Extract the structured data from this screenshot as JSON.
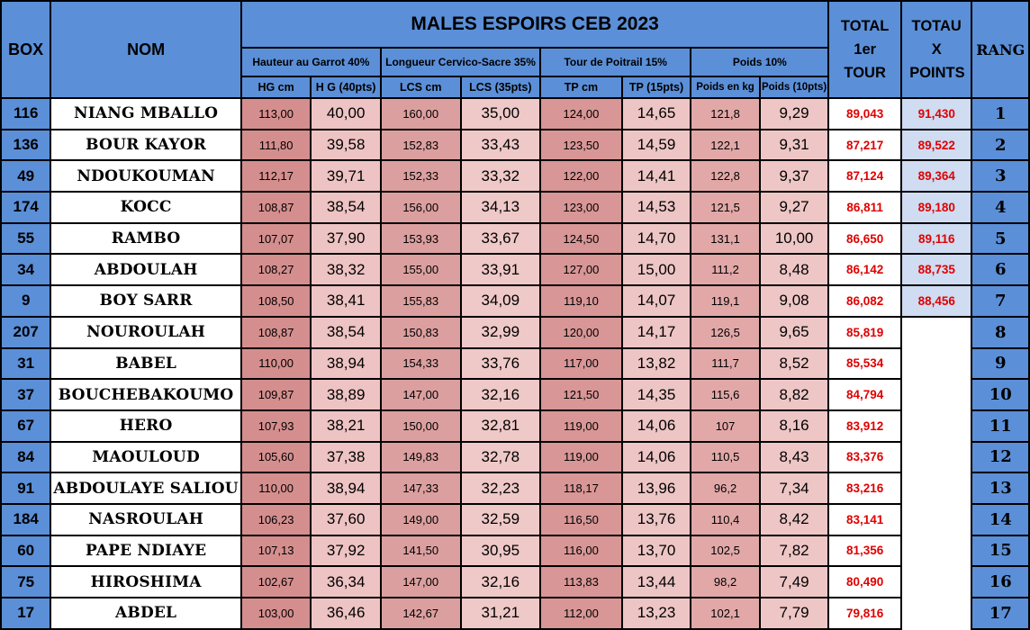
{
  "title": "MALES ESPOIRS CEB 2023",
  "headers": {
    "box": "BOX",
    "nom": "NOM",
    "groups": [
      "Hauteur au Garrot 40%",
      "Longueur Cervico-Sacre 35%",
      "Tour de Poitrail 15%",
      "Poids 10%"
    ],
    "subs": [
      "HG cm",
      "H G (40pts)",
      "LCS cm",
      "LCS (35pts)",
      "TP cm",
      "TP (15pts)",
      "Poids en kg",
      "Poids (10pts)"
    ],
    "total": "TOTAL 1er TOUR",
    "totx": "TOTAU X POINTS",
    "rang": "RANG"
  },
  "rows": [
    {
      "box": "116",
      "nom": "NIANG MBALLO",
      "hg": "113,00",
      "hgp": "40,00",
      "lcs": "160,00",
      "lcsp": "35,00",
      "tp": "124,00",
      "tpp": "14,65",
      "pd": "121,8",
      "pdp": "9,29",
      "total": "89,043",
      "totx": "91,430",
      "rang": "1"
    },
    {
      "box": "136",
      "nom": "BOUR KAYOR",
      "hg": "111,80",
      "hgp": "39,58",
      "lcs": "152,83",
      "lcsp": "33,43",
      "tp": "123,50",
      "tpp": "14,59",
      "pd": "122,1",
      "pdp": "9,31",
      "total": "87,217",
      "totx": "89,522",
      "rang": "2"
    },
    {
      "box": "49",
      "nom": "NDOUKOUMAN",
      "hg": "112,17",
      "hgp": "39,71",
      "lcs": "152,33",
      "lcsp": "33,32",
      "tp": "122,00",
      "tpp": "14,41",
      "pd": "122,8",
      "pdp": "9,37",
      "total": "87,124",
      "totx": "89,364",
      "rang": "3"
    },
    {
      "box": "174",
      "nom": "KOCC",
      "hg": "108,87",
      "hgp": "38,54",
      "lcs": "156,00",
      "lcsp": "34,13",
      "tp": "123,00",
      "tpp": "14,53",
      "pd": "121,5",
      "pdp": "9,27",
      "total": "86,811",
      "totx": "89,180",
      "rang": "4"
    },
    {
      "box": "55",
      "nom": "RAMBO",
      "hg": "107,07",
      "hgp": "37,90",
      "lcs": "153,93",
      "lcsp": "33,67",
      "tp": "124,50",
      "tpp": "14,70",
      "pd": "131,1",
      "pdp": "10,00",
      "total": "86,650",
      "totx": "89,116",
      "rang": "5"
    },
    {
      "box": "34",
      "nom": "ABDOULAH",
      "hg": "108,27",
      "hgp": "38,32",
      "lcs": "155,00",
      "lcsp": "33,91",
      "tp": "127,00",
      "tpp": "15,00",
      "pd": "111,2",
      "pdp": "8,48",
      "total": "86,142",
      "totx": "88,735",
      "rang": "6"
    },
    {
      "box": "9",
      "nom": "BOY SARR",
      "hg": "108,50",
      "hgp": "38,41",
      "lcs": "155,83",
      "lcsp": "34,09",
      "tp": "119,10",
      "tpp": "14,07",
      "pd": "119,1",
      "pdp": "9,08",
      "total": "86,082",
      "totx": "88,456",
      "rang": "7"
    },
    {
      "box": "207",
      "nom": "NOUROULAH",
      "hg": "108,87",
      "hgp": "38,54",
      "lcs": "150,83",
      "lcsp": "32,99",
      "tp": "120,00",
      "tpp": "14,17",
      "pd": "126,5",
      "pdp": "9,65",
      "total": "85,819",
      "totx": "",
      "rang": "8"
    },
    {
      "box": "31",
      "nom": "BABEL",
      "hg": "110,00",
      "hgp": "38,94",
      "lcs": "154,33",
      "lcsp": "33,76",
      "tp": "117,00",
      "tpp": "13,82",
      "pd": "111,7",
      "pdp": "8,52",
      "total": "85,534",
      "totx": "",
      "rang": "9"
    },
    {
      "box": "37",
      "nom": "BOUCHEBAKOUMO",
      "hg": "109,87",
      "hgp": "38,89",
      "lcs": "147,00",
      "lcsp": "32,16",
      "tp": "121,50",
      "tpp": "14,35",
      "pd": "115,6",
      "pdp": "8,82",
      "total": "84,794",
      "totx": "",
      "rang": "10"
    },
    {
      "box": "67",
      "nom": "HERO",
      "hg": "107,93",
      "hgp": "38,21",
      "lcs": "150,00",
      "lcsp": "32,81",
      "tp": "119,00",
      "tpp": "14,06",
      "pd": "107",
      "pdp": "8,16",
      "total": "83,912",
      "totx": "",
      "rang": "11"
    },
    {
      "box": "84",
      "nom": "MAOULOUD",
      "hg": "105,60",
      "hgp": "37,38",
      "lcs": "149,83",
      "lcsp": "32,78",
      "tp": "119,00",
      "tpp": "14,06",
      "pd": "110,5",
      "pdp": "8,43",
      "total": "83,376",
      "totx": "",
      "rang": "12"
    },
    {
      "box": "91",
      "nom": "ABDOULAYE SALIOU",
      "hg": "110,00",
      "hgp": "38,94",
      "lcs": "147,33",
      "lcsp": "32,23",
      "tp": "118,17",
      "tpp": "13,96",
      "pd": "96,2",
      "pdp": "7,34",
      "total": "83,216",
      "totx": "",
      "rang": "13"
    },
    {
      "box": "184",
      "nom": "NASROULAH",
      "hg": "106,23",
      "hgp": "37,60",
      "lcs": "149,00",
      "lcsp": "32,59",
      "tp": "116,50",
      "tpp": "13,76",
      "pd": "110,4",
      "pdp": "8,42",
      "total": "83,141",
      "totx": "",
      "rang": "14"
    },
    {
      "box": "60",
      "nom": "PAPE NDIAYE",
      "hg": "107,13",
      "hgp": "37,92",
      "lcs": "141,50",
      "lcsp": "30,95",
      "tp": "116,00",
      "tpp": "13,70",
      "pd": "102,5",
      "pdp": "7,82",
      "total": "81,356",
      "totx": "",
      "rang": "15"
    },
    {
      "box": "75",
      "nom": "HIROSHIMA",
      "hg": "102,67",
      "hgp": "36,34",
      "lcs": "147,00",
      "lcsp": "32,16",
      "tp": "113,83",
      "tpp": "13,44",
      "pd": "98,2",
      "pdp": "7,49",
      "total": "80,490",
      "totx": "",
      "rang": "16"
    },
    {
      "box": "17",
      "nom": "ABDEL",
      "hg": "103,00",
      "hgp": "36,46",
      "lcs": "142,67",
      "lcsp": "31,21",
      "tp": "112,00",
      "tpp": "13,23",
      "pd": "102,1",
      "pdp": "7,79",
      "total": "79,816",
      "totx": "",
      "rang": "17"
    }
  ]
}
